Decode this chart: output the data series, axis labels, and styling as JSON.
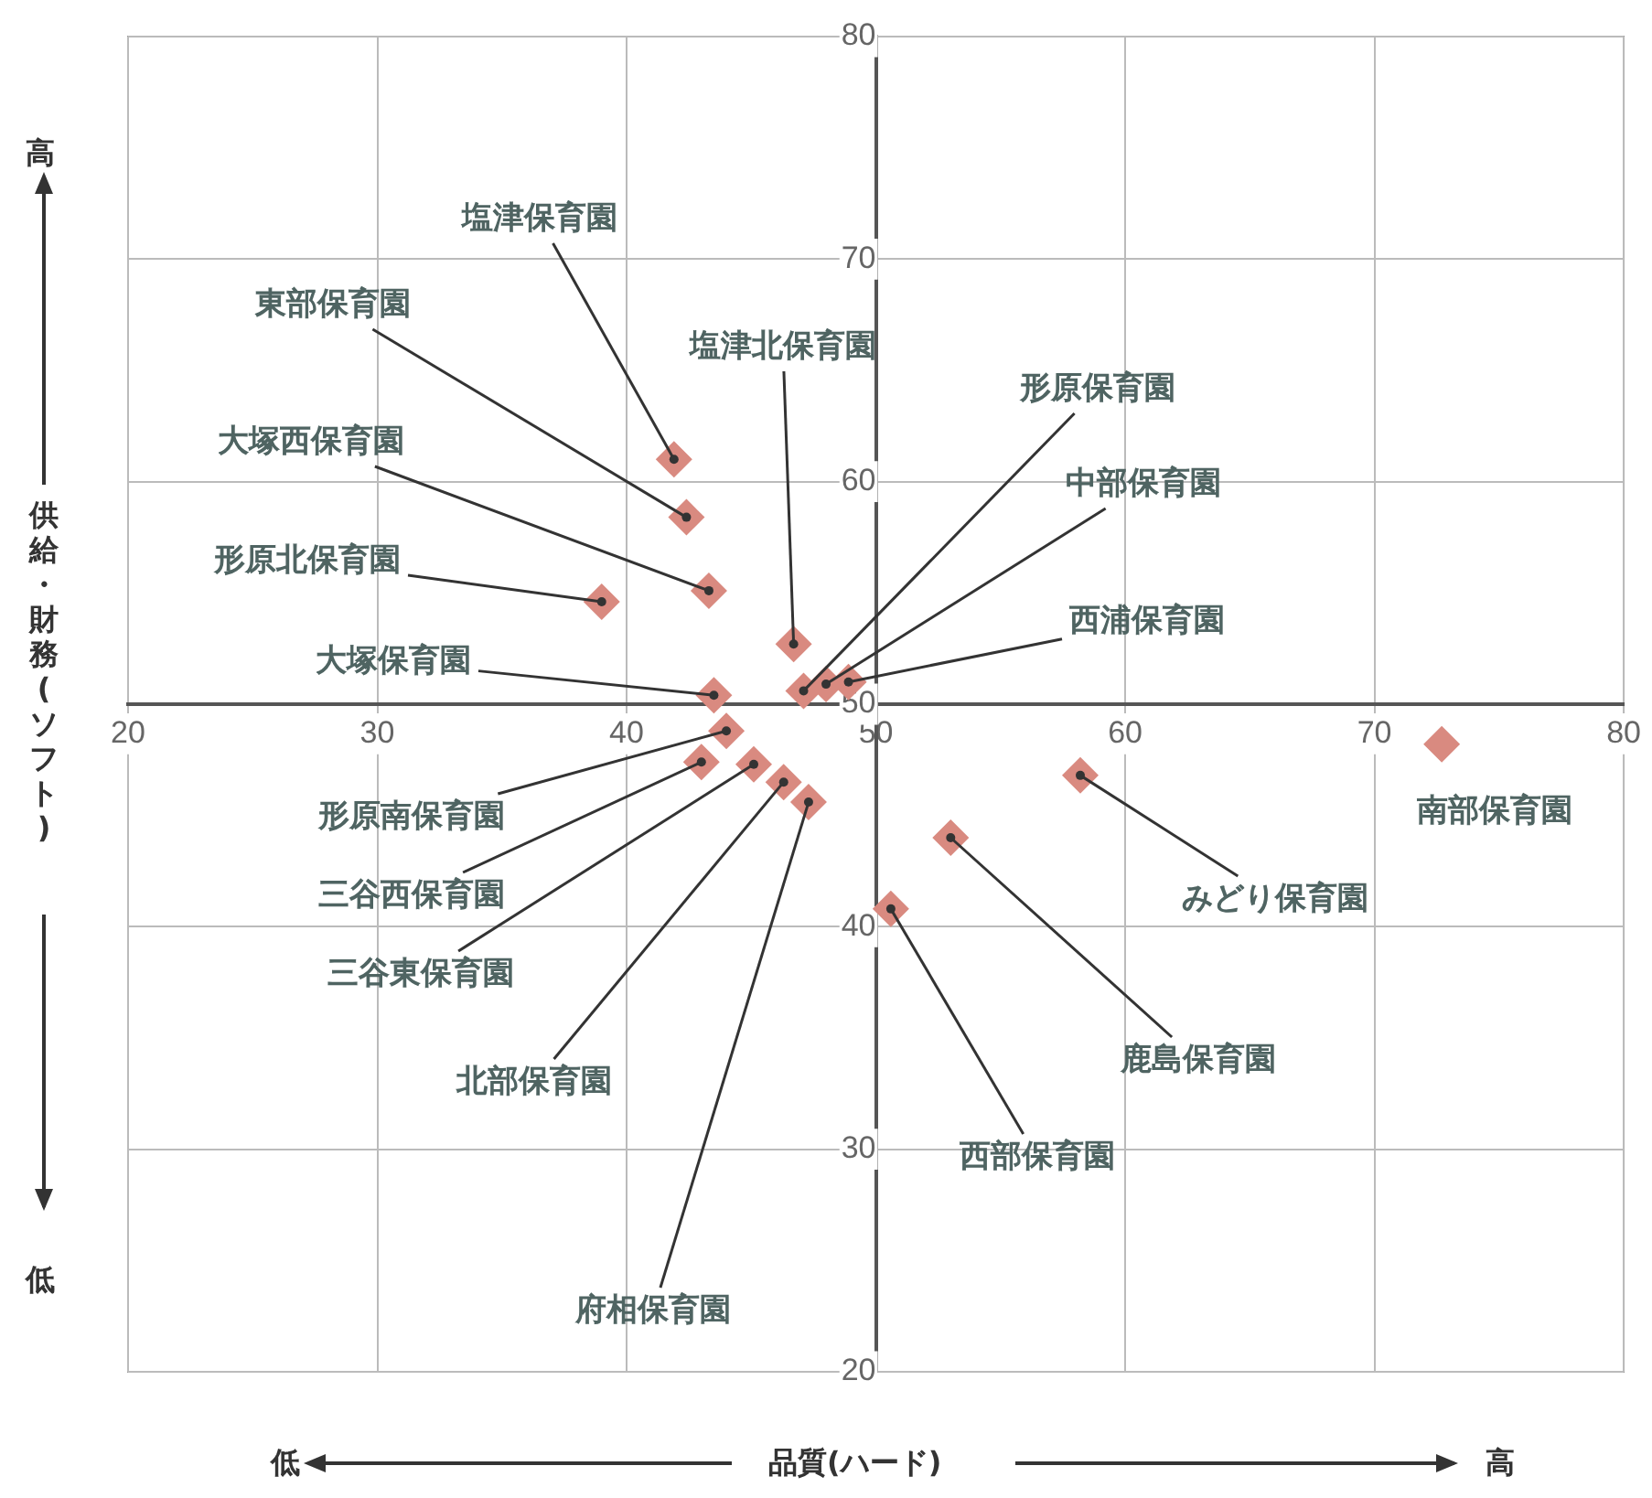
{
  "chart_data": {
    "type": "scatter",
    "xlabel": "品質(ハード)",
    "ylabel": "供給・財務(ソフト)",
    "x": [
      41.9,
      42.4,
      43.3,
      39.0,
      46.7,
      47.1,
      48.0,
      48.9,
      43.5,
      44.0,
      43.0,
      45.1,
      46.3,
      47.3,
      58.2,
      53.0,
      50.6,
      72.7
    ],
    "series": [
      {
        "color": "#d98a80",
        "values": [
          61.0,
          58.4,
          55.1,
          54.6,
          52.7,
          50.6,
          50.9,
          51.0,
          50.4,
          48.8,
          47.4,
          47.3,
          46.5,
          45.6,
          46.8,
          44.0,
          40.8,
          48.2
        ]
      }
    ],
    "xlim": [
      20,
      80
    ],
    "ylim": [
      20,
      80
    ],
    "xticks": [
      20,
      30,
      40,
      50,
      60,
      70,
      80
    ],
    "yticks": [
      20,
      30,
      40,
      50,
      60,
      70,
      80
    ],
    "grid": true,
    "marker": "diamond",
    "annotations": [
      "高",
      "低",
      "低",
      "高",
      {
        "text": "塩津保育園",
        "x": 41.9,
        "y": 61.0
      },
      {
        "text": "東部保育園",
        "x": 42.4,
        "y": 58.4
      },
      {
        "text": "大塚西保育園",
        "x": 43.3,
        "y": 55.1
      },
      {
        "text": "形原北保育園",
        "x": 39.0,
        "y": 54.6
      },
      {
        "text": "塩津北保育園",
        "x": 46.7,
        "y": 52.7
      },
      {
        "text": "形原保育園",
        "x": 47.1,
        "y": 50.6
      },
      {
        "text": "中部保育園",
        "x": 48.0,
        "y": 50.9
      },
      {
        "text": "西浦保育園",
        "x": 48.9,
        "y": 51.0
      },
      {
        "text": "大塚保育園",
        "x": 43.5,
        "y": 50.4
      },
      {
        "text": "形原南保育園",
        "x": 44.0,
        "y": 48.8
      },
      {
        "text": "三谷西保育園",
        "x": 43.0,
        "y": 47.4
      },
      {
        "text": "三谷東保育園",
        "x": 45.1,
        "y": 47.3
      },
      {
        "text": "北部保育園",
        "x": 46.3,
        "y": 46.5
      },
      {
        "text": "府相保育園",
        "x": 47.3,
        "y": 45.6
      },
      {
        "text": "みどり保育園",
        "x": 58.2,
        "y": 46.8
      },
      {
        "text": "鹿島保育園",
        "x": 53.0,
        "y": 44.0
      },
      {
        "text": "西部保育園",
        "x": 50.6,
        "y": 40.8
      },
      {
        "text": "南部保育園",
        "x": 72.7,
        "y": 48.2
      }
    ]
  }
}
